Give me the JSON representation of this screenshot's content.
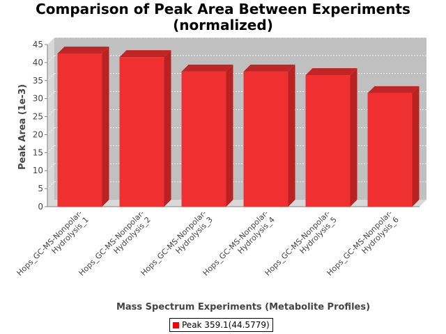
{
  "chart_data": {
    "type": "bar",
    "title_lines": [
      "Comparison of Peak Area Between Experiments",
      "(normalized)"
    ],
    "xlabel": "Mass Spectrum Experiments (Metabolite Profiles)",
    "ylabel": "Peak Area (1e-3)",
    "ylim": [
      0,
      45
    ],
    "yticks": [
      "0",
      "5",
      "10",
      "15",
      "20",
      "25",
      "30",
      "35",
      "40",
      "45"
    ],
    "categories": [
      [
        "Hops_GC-MS-Nonpolar-",
        "Hydrolysis_1"
      ],
      [
        "Hops_GC-MS-Nonpolar-",
        "Hydrolysis_2"
      ],
      [
        "Hops_GC-MS-Nonpolar-",
        "Hydrolysis_3"
      ],
      [
        "Hops_GC-MS-Nonpolar-",
        "Hydrolysis_4"
      ],
      [
        "Hops_GC-MS-Nonpolar-",
        "Hydrolysis_5"
      ],
      [
        "Hops_GC-MS-Nonpolar-",
        "Hydrolysis_6"
      ]
    ],
    "series": [
      {
        "name": "Peak 359.1(44.5779)",
        "values": [
          42.5,
          41.5,
          37.5,
          37.5,
          36.5,
          31.5
        ]
      }
    ],
    "grid": true,
    "legend_position": "bottom",
    "colors": {
      "bar": "#ff0000",
      "plot_background": "#c0c0c0"
    }
  }
}
